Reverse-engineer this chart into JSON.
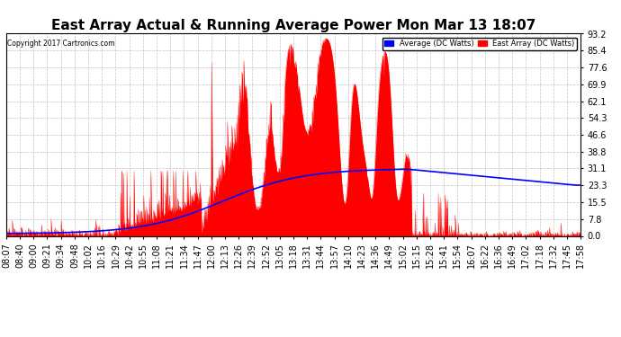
{
  "title": "East Array Actual & Running Average Power Mon Mar 13 18:07",
  "copyright": "Copyright 2017 Cartronics.com",
  "legend_avg": "Average (DC Watts)",
  "legend_east": "East Array (DC Watts)",
  "y_max": 93.2,
  "y_min": 0.0,
  "y_ticks": [
    0.0,
    7.8,
    15.5,
    23.3,
    31.1,
    38.8,
    46.6,
    54.3,
    62.1,
    69.9,
    77.6,
    85.4,
    93.2
  ],
  "bar_color": "#FF0000",
  "avg_color": "#0000FF",
  "background_color": "#FFFFFF",
  "grid_color": "#AAAAAA",
  "title_fontsize": 11,
  "tick_fontsize": 7,
  "x_labels": [
    "08:07",
    "08:40",
    "09:00",
    "09:21",
    "09:34",
    "09:48",
    "10:02",
    "10:16",
    "10:29",
    "10:42",
    "10:55",
    "11:08",
    "11:21",
    "11:34",
    "11:47",
    "12:00",
    "12:13",
    "12:26",
    "12:39",
    "12:52",
    "13:05",
    "13:18",
    "13:31",
    "13:44",
    "13:57",
    "14:10",
    "14:23",
    "14:36",
    "14:49",
    "15:02",
    "15:15",
    "15:28",
    "15:41",
    "15:54",
    "16:07",
    "16:22",
    "16:36",
    "16:49",
    "17:02",
    "17:18",
    "17:32",
    "17:45",
    "17:58"
  ]
}
